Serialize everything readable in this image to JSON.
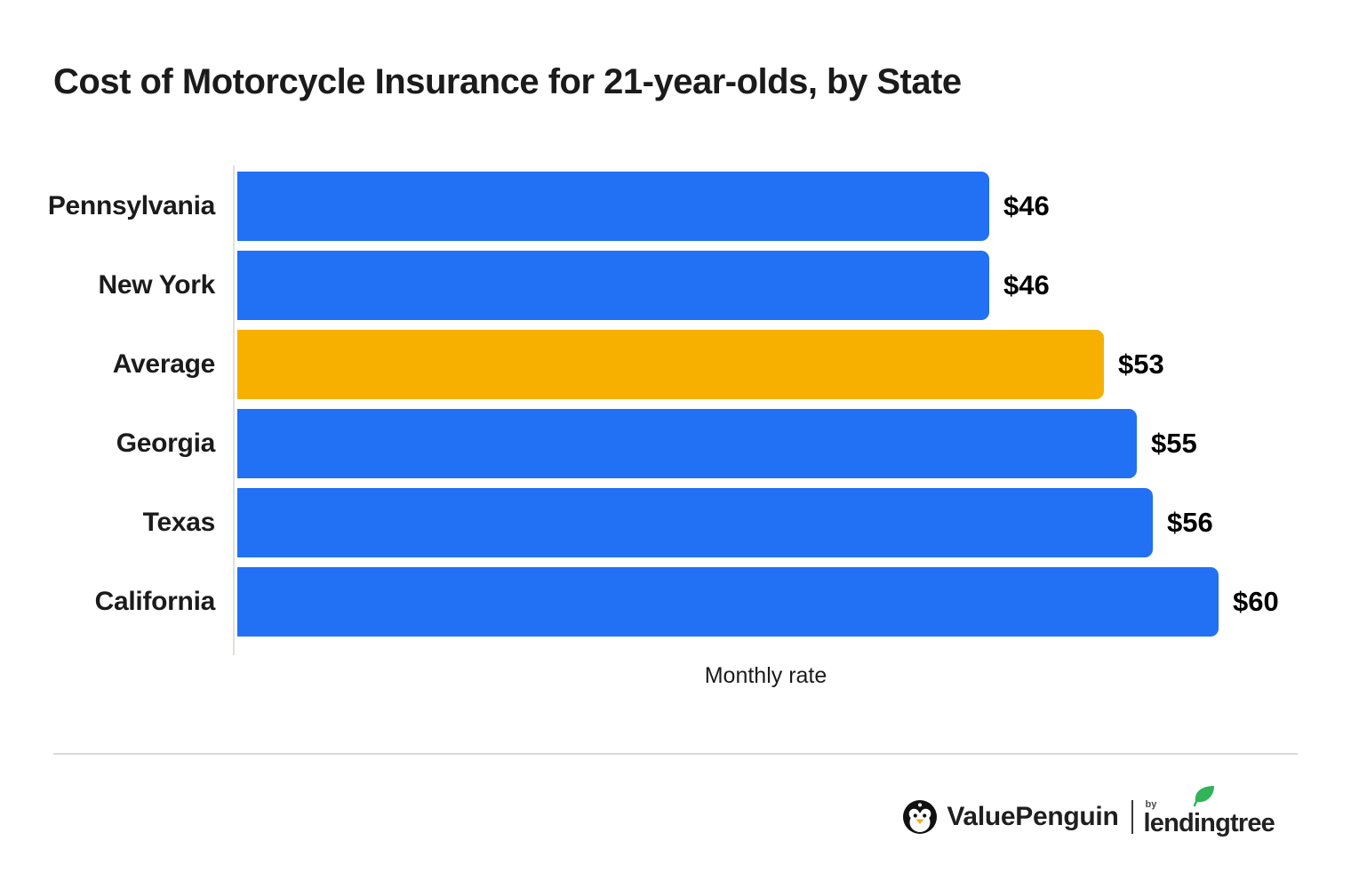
{
  "title": "Cost of Motorcycle Insurance for 21-year-olds, by State",
  "chart_data": {
    "type": "bar",
    "orientation": "horizontal",
    "title": "Cost of Motorcycle Insurance for 21-year-olds, by State",
    "categories": [
      "Pennsylvania",
      "New York",
      "Average",
      "Georgia",
      "Texas",
      "California"
    ],
    "values": [
      46,
      46,
      53,
      55,
      56,
      60
    ],
    "value_labels": [
      "$46",
      "$46",
      "$53",
      "$55",
      "$56",
      "$60"
    ],
    "bar_color_keys": [
      "blue",
      "blue",
      "orange",
      "blue",
      "blue",
      "blue"
    ],
    "highlighted_category": "Average",
    "xlabel": "Monthly rate",
    "xlim": [
      0,
      60
    ],
    "grid": false,
    "legend": false
  },
  "colors": {
    "blue": "#2270F4",
    "orange": "#F7B000",
    "text": "#1B1B1B",
    "axis": "#E2DFDB",
    "divider": "#D9D9D9",
    "leaf_green": "#2FB457",
    "beak_orange": "#F9A825"
  },
  "footer": {
    "brand": "ValuePenguin",
    "by_label": "by",
    "sub_brand": "lendingtree"
  }
}
